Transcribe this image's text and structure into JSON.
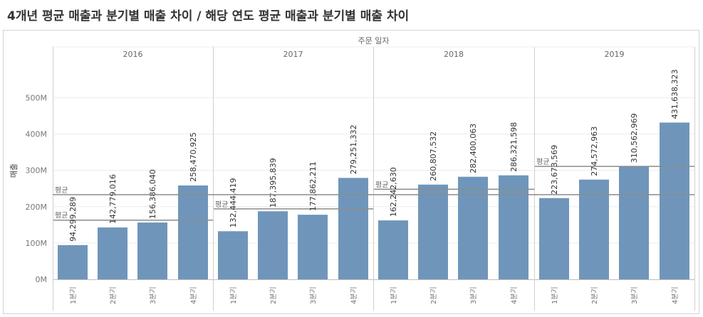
{
  "title": "4개년 평균 매출과 분기별 매출 차이 / 해당 연도 평균 매출과 분기별 매출 차이",
  "colors": {
    "bar": "#6f96ba",
    "ref_line": "#8c8c8c",
    "grid": "#ececec",
    "divider": "#cfcfcf",
    "text": "#666666"
  },
  "chart_data": {
    "type": "bar",
    "column_header": "주문 일자",
    "ylabel": "매출",
    "ylim": [
      0,
      600000000
    ],
    "yticks": [
      {
        "value": 0,
        "label": "0M"
      },
      {
        "value": 100000000,
        "label": "100M"
      },
      {
        "value": 200000000,
        "label": "200M"
      },
      {
        "value": 300000000,
        "label": "300M"
      },
      {
        "value": 400000000,
        "label": "400M"
      },
      {
        "value": 500000000,
        "label": "500M"
      }
    ],
    "overall_average": {
      "label": "평균",
      "value": 233000000
    },
    "panels": [
      {
        "year": "2016",
        "categories": [
          "1분기",
          "2분기",
          "3분기",
          "4분기"
        ],
        "values": [
          94299289,
          142779016,
          156386040,
          258470925
        ],
        "value_labels": [
          "94,299,289",
          "142,779,016",
          "156,386,040",
          "258,470,925"
        ],
        "average": {
          "label": "평균",
          "value": 163000000
        }
      },
      {
        "year": "2017",
        "categories": [
          "1분기",
          "2분기",
          "3분기",
          "4분기"
        ],
        "values": [
          132444419,
          187395839,
          177862211,
          279251332
        ],
        "value_labels": [
          "132,444,419",
          "187,395,839",
          "177,862,211",
          "279,251,332"
        ],
        "average": {
          "label": "평균",
          "value": 194000000
        }
      },
      {
        "year": "2018",
        "categories": [
          "1분기",
          "2분기",
          "3분기",
          "4분기"
        ],
        "values": [
          162242630,
          260807532,
          282400063,
          286321598
        ],
        "value_labels": [
          "162,242,630",
          "260,807,532",
          "282,400,063",
          "286,321,598"
        ],
        "average": {
          "label": "평균",
          "value": 248000000
        }
      },
      {
        "year": "2019",
        "categories": [
          "1분기",
          "2분기",
          "3분기",
          "4분기"
        ],
        "values": [
          223673569,
          274572963,
          310562969,
          431638323
        ],
        "value_labels": [
          "223,673,569",
          "274,572,963",
          "310,562,969",
          "431,638,323"
        ],
        "average": {
          "label": "평균",
          "value": 311000000
        }
      }
    ]
  }
}
